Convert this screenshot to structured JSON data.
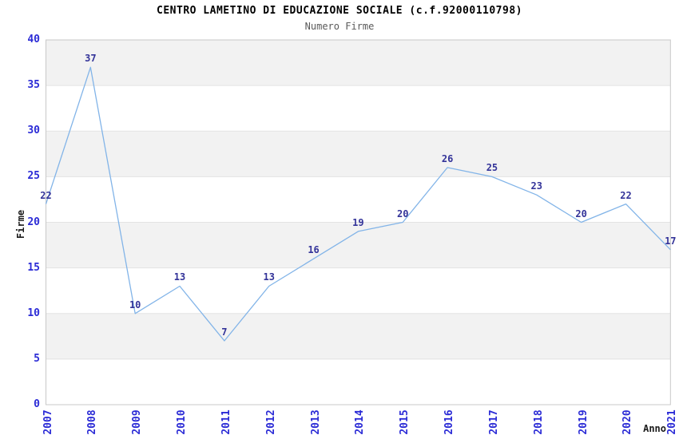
{
  "chart_data": {
    "type": "line",
    "title": "CENTRO LAMETINO DI EDUCAZIONE SOCIALE (c.f.92000110798)",
    "subtitle": "Numero Firme",
    "xlabel": "Anno",
    "ylabel": "Firme",
    "categories": [
      "2007",
      "2008",
      "2009",
      "2010",
      "2011",
      "2012",
      "2013",
      "2014",
      "2015",
      "2016",
      "2017",
      "2018",
      "2019",
      "2020",
      "2021"
    ],
    "series": [
      {
        "name": "Firme",
        "values": [
          22,
          37,
          10,
          13,
          7,
          13,
          16,
          19,
          20,
          26,
          25,
          23,
          20,
          22,
          17
        ]
      }
    ],
    "ylim": [
      0,
      40
    ],
    "ytick_step": 5,
    "yticks": [
      0,
      5,
      10,
      15,
      20,
      25,
      30,
      35,
      40
    ],
    "grid": true,
    "legend": "none",
    "colors": {
      "line": "#82b4e8",
      "data_label": "#333399",
      "tick_label": "#2b2bd6",
      "band": "#f2f2f2",
      "gridline": "#e3e3e3",
      "plot_border": "#c8c8c8",
      "title": "#000000",
      "subtitle": "#5a5a5a",
      "axis_title": "#1a1a1a"
    }
  }
}
